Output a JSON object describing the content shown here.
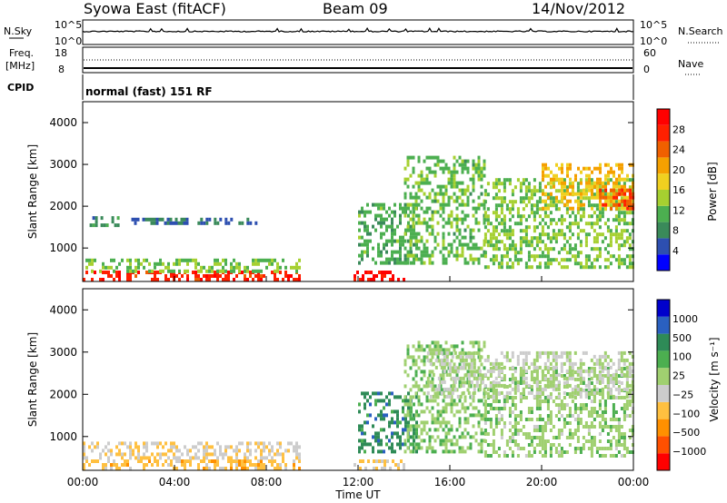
{
  "header": {
    "station": "Syowa East (fitACF)",
    "beam": "Beam 09",
    "date": "14/Nov/2012"
  },
  "panels": {
    "sky": {
      "label": "N.Sky",
      "tick_top": "10^5",
      "tick_bottom": "10^0",
      "right_label": "N.Search",
      "right_tick_top": "10^5",
      "right_tick_bottom": "10^0"
    },
    "freq": {
      "label_line1": "Freq.",
      "label_line2": "[MHz]",
      "tick_top": "18",
      "tick_bottom": "8",
      "right_label": "Nave",
      "right_tick_top": "60",
      "right_tick_bottom": "0"
    },
    "cpid": {
      "label": "CPID",
      "value": "normal (fast) 151 RF"
    }
  },
  "colors": {
    "power_scale": [
      "#0000ff",
      "#2d4fb0",
      "#3a8a5a",
      "#4caf50",
      "#a6d030",
      "#f0d020",
      "#f5a000",
      "#f06000",
      "#ff2000",
      "#ff0000"
    ],
    "velocity_scale": [
      "#ff0000",
      "#ff5000",
      "#ff9000",
      "#ffc040",
      "#cccccc",
      "#a0d070",
      "#4caf50",
      "#2e8b57",
      "#2a60c0",
      "#0000cc"
    ]
  },
  "chart_data": [
    {
      "type": "heatmap",
      "name": "power",
      "xlabel": "",
      "ylabel": "Slant Range [km]",
      "xlim": [
        0,
        24
      ],
      "ylim": [
        200,
        4500
      ],
      "yticks": [
        1000,
        2000,
        3000,
        4000
      ],
      "colorbar": {
        "label": "Power [dB]",
        "ticks": [
          "4",
          "8",
          "12",
          "16",
          "20",
          "24",
          "28"
        ],
        "range": [
          0,
          30
        ]
      },
      "regions": [
        {
          "t0": 0.0,
          "t1": 9.5,
          "r0": 200,
          "r1": 400,
          "value": 26
        },
        {
          "t0": 0.0,
          "t1": 9.5,
          "r0": 400,
          "r1": 700,
          "value": 12
        },
        {
          "t0": 0.3,
          "t1": 1.6,
          "r0": 1500,
          "r1": 1750,
          "value": 8
        },
        {
          "t0": 2.0,
          "t1": 4.5,
          "r0": 1550,
          "r1": 1650,
          "value": 6
        },
        {
          "t0": 5.0,
          "t1": 7.8,
          "r0": 1550,
          "r1": 1650,
          "value": 6
        },
        {
          "t0": 11.8,
          "t1": 14.0,
          "r0": 200,
          "r1": 450,
          "value": 28
        },
        {
          "t0": 12.0,
          "t1": 14.5,
          "r0": 600,
          "r1": 2000,
          "value": 10
        },
        {
          "t0": 14.0,
          "t1": 17.5,
          "r0": 600,
          "r1": 3200,
          "value": 11
        },
        {
          "t0": 17.5,
          "t1": 24.0,
          "r0": 500,
          "r1": 2600,
          "value": 12
        },
        {
          "t0": 20.0,
          "t1": 24.0,
          "r0": 1900,
          "r1": 3000,
          "value": 18
        },
        {
          "t0": 22.5,
          "t1": 24.0,
          "r0": 1900,
          "r1": 2400,
          "value": 24
        }
      ]
    },
    {
      "type": "heatmap",
      "name": "velocity",
      "xlabel": "Time UT",
      "ylabel": "Slant Range [km]",
      "xlim": [
        0,
        24
      ],
      "ylim": [
        200,
        4500
      ],
      "xticks": [
        "00:00",
        "04:00",
        "08:00",
        "12:00",
        "16:00",
        "20:00",
        "00:00"
      ],
      "yticks": [
        1000,
        2000,
        3000,
        4000
      ],
      "colorbar": {
        "label": "Velocity [m s⁻¹]",
        "ticks": [
          "1000",
          "500",
          "100",
          "25",
          "−25",
          "−100",
          "−500",
          "−1000"
        ],
        "range": [
          -1000,
          1000
        ]
      },
      "regions": [
        {
          "t0": 0.0,
          "t1": 9.5,
          "r0": 200,
          "r1": 450,
          "value": -300
        },
        {
          "t0": 0.0,
          "t1": 9.5,
          "r0": 450,
          "r1": 800,
          "value": -150
        },
        {
          "t0": 11.8,
          "t1": 14.0,
          "r0": 200,
          "r1": 450,
          "value": -200
        },
        {
          "t0": 12.0,
          "t1": 14.5,
          "r0": 600,
          "r1": 2000,
          "value": 500
        },
        {
          "t0": 14.0,
          "t1": 17.5,
          "r0": 600,
          "r1": 3200,
          "value": 150
        },
        {
          "t0": 17.5,
          "t1": 24.0,
          "r0": 500,
          "r1": 2600,
          "value": 120
        },
        {
          "t0": 15.0,
          "t1": 24.0,
          "r0": 1900,
          "r1": 3000,
          "value": 0
        }
      ]
    }
  ]
}
